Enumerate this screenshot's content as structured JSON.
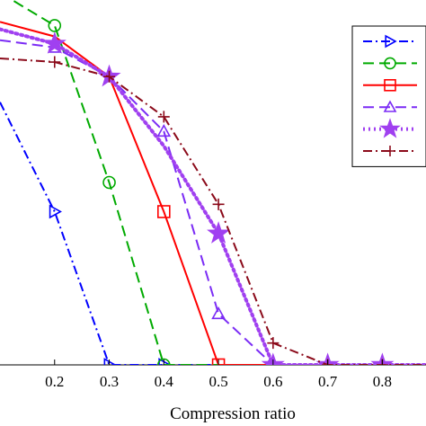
{
  "chart_data": {
    "type": "line",
    "xlabel": "Compression ratio",
    "ylabel": "",
    "title": "",
    "x": [
      0.1,
      0.2,
      0.3,
      0.4,
      0.5,
      0.6,
      0.7,
      0.8,
      0.9
    ],
    "xticks": [
      0.2,
      0.3,
      0.4,
      0.5,
      0.6,
      0.7,
      0.8
    ],
    "xlim": [
      0.1,
      0.88
    ],
    "ylim": [
      0,
      1
    ],
    "grid": false,
    "legend_position": "top-right",
    "series": [
      {
        "values": [
          0.72,
          0.42,
          0.0,
          0.0,
          0.0,
          0.0,
          0.0,
          0.0,
          0.0
        ],
        "color": "#0000ff",
        "dash": "dashdot",
        "marker": "triangle-right",
        "marker_x": [
          0.2,
          0.3,
          0.4
        ]
      },
      {
        "values": [
          1.02,
          0.93,
          0.5,
          0.0,
          0.0,
          0.0,
          0.0,
          0.0,
          0.0
        ],
        "color": "#00aa00",
        "dash": "dashed",
        "marker": "circle",
        "marker_x": [
          0.2,
          0.3,
          0.4
        ]
      },
      {
        "values": [
          0.94,
          0.9,
          0.79,
          0.42,
          0.0,
          0.0,
          0.0,
          0.0,
          0.0
        ],
        "color": "#ff0000",
        "dash": "solid",
        "marker": "square",
        "marker_x": [
          0.4,
          0.5
        ]
      },
      {
        "values": [
          0.89,
          0.87,
          0.79,
          0.64,
          0.14,
          0.0,
          0.0,
          0.0,
          0.0
        ],
        "color": "#7b2cf5",
        "dash": "dashed",
        "marker": "triangle-up",
        "marker_x": [
          0.2,
          0.4,
          0.5,
          0.6
        ]
      },
      {
        "values": [
          0.92,
          0.88,
          0.79,
          0.6,
          0.36,
          0.0,
          0.0,
          0.0,
          0.0
        ],
        "color": "#a040f0",
        "dash": "dotted",
        "marker": "star",
        "marker_x": [
          0.2,
          0.3,
          0.5,
          0.6,
          0.7,
          0.8
        ]
      },
      {
        "values": [
          0.84,
          0.83,
          0.79,
          0.68,
          0.44,
          0.06,
          0.0,
          0.0,
          0.0
        ],
        "color": "#8b0a1a",
        "dash": "dashdot",
        "marker": "plus",
        "marker_x": [
          0.2,
          0.3,
          0.4,
          0.5,
          0.6,
          0.7,
          0.8
        ]
      }
    ]
  }
}
